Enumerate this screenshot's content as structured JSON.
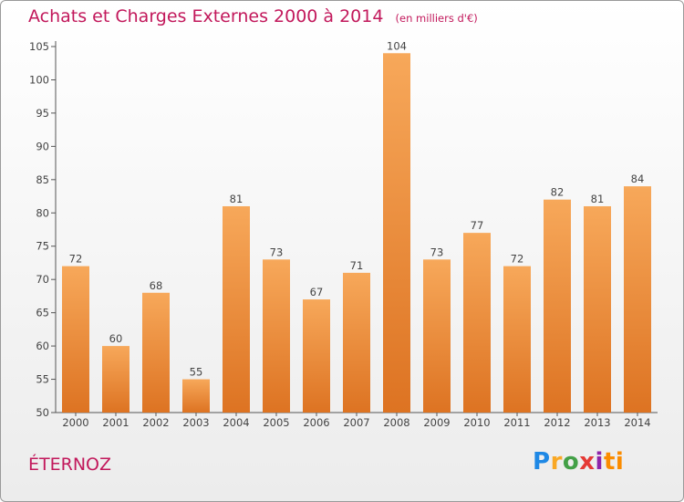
{
  "header": {
    "title": "Achats et Charges Externes 2000 à 2014",
    "subtitle": "(en milliers d'€)"
  },
  "footer": {
    "place": "ÉTERNOZ",
    "logo_text": "Proxiti"
  },
  "colors": {
    "accent": "#c2185b",
    "bar_top": "#f7a85a",
    "bar_bottom": "#dd7322",
    "axis": "#555555",
    "grid": "#dddddd"
  },
  "chart_data": {
    "type": "bar",
    "title": "Achats et Charges Externes 2000 à 2014",
    "subtitle": "(en milliers d'€)",
    "categories": [
      "2000",
      "2001",
      "2002",
      "2003",
      "2004",
      "2005",
      "2006",
      "2007",
      "2008",
      "2009",
      "2010",
      "2011",
      "2012",
      "2013",
      "2014"
    ],
    "values": [
      72,
      60,
      68,
      55,
      81,
      73,
      67,
      71,
      104,
      73,
      77,
      72,
      82,
      81,
      84
    ],
    "ylim": [
      50,
      105
    ],
    "yticks": [
      50,
      55,
      60,
      65,
      70,
      75,
      80,
      85,
      90,
      95,
      100,
      105
    ],
    "grid": false,
    "legend": "none",
    "data_labels": true
  }
}
